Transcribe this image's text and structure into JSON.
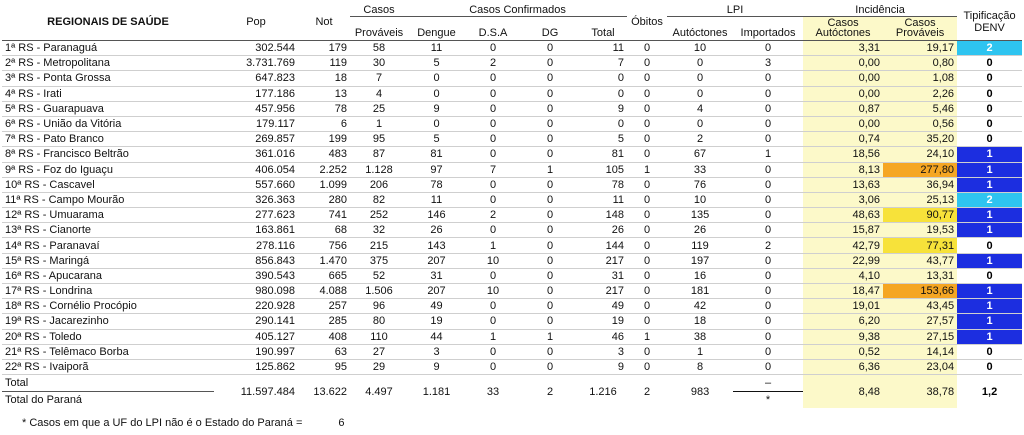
{
  "headers": {
    "regional": "REGIONAIS DE SAÚDE",
    "pop": "Pop",
    "not": "Not",
    "casos_group": "Casos",
    "confirmados_group": "Casos Confirmados",
    "lpi_group": "LPI",
    "incidencia_group": "Incidência",
    "tipificacao": "Tipificação DENV",
    "provaveis": "Prováveis",
    "dengue": "Dengue",
    "dsa": "D.S.A",
    "dg": "DG",
    "total": "Total",
    "obitos": "Óbitos",
    "autoctones": "Autóctones",
    "importados": "Importados",
    "inc_autoctones": "Casos Autóctones",
    "inc_provaveis": "Casos Prováveis"
  },
  "rows": [
    {
      "name": "1ª RS - Paranaguá",
      "pop": "302.544",
      "not": "179",
      "prov": "58",
      "dengue": "11",
      "dsa": "0",
      "dg": "0",
      "total": "11",
      "obitos": "0",
      "aut": "10",
      "imp": "0",
      "inc_aut": "3,31",
      "inc_prov": "19,17",
      "tip": "2",
      "inc_prov_color": "#fcf9c9",
      "tip_color": "#2ec4f0"
    },
    {
      "name": "2ª RS - Metropolitana",
      "pop": "3.731.769",
      "not": "119",
      "prov": "30",
      "dengue": "5",
      "dsa": "2",
      "dg": "0",
      "total": "7",
      "obitos": "0",
      "aut": "0",
      "imp": "3",
      "inc_aut": "0,00",
      "inc_prov": "0,80",
      "tip": "0",
      "inc_prov_color": "#fcf9c9",
      "tip_color": "#ffffff"
    },
    {
      "name": "3ª RS - Ponta Grossa",
      "pop": "647.823",
      "not": "18",
      "prov": "7",
      "dengue": "0",
      "dsa": "0",
      "dg": "0",
      "total": "0",
      "obitos": "0",
      "aut": "0",
      "imp": "0",
      "inc_aut": "0,00",
      "inc_prov": "1,08",
      "tip": "0",
      "inc_prov_color": "#fcf9c9",
      "tip_color": "#ffffff"
    },
    {
      "name": "4ª RS - Irati",
      "pop": "177.186",
      "not": "13",
      "prov": "4",
      "dengue": "0",
      "dsa": "0",
      "dg": "0",
      "total": "0",
      "obitos": "0",
      "aut": "0",
      "imp": "0",
      "inc_aut": "0,00",
      "inc_prov": "2,26",
      "tip": "0",
      "inc_prov_color": "#fcf9c9",
      "tip_color": "#ffffff"
    },
    {
      "name": "5ª RS - Guarapuava",
      "pop": "457.956",
      "not": "78",
      "prov": "25",
      "dengue": "9",
      "dsa": "0",
      "dg": "0",
      "total": "9",
      "obitos": "0",
      "aut": "4",
      "imp": "0",
      "inc_aut": "0,87",
      "inc_prov": "5,46",
      "tip": "0",
      "inc_prov_color": "#fcf9c9",
      "tip_color": "#ffffff"
    },
    {
      "name": "6ª RS - União da Vitória",
      "pop": "179.117",
      "not": "6",
      "prov": "1",
      "dengue": "0",
      "dsa": "0",
      "dg": "0",
      "total": "0",
      "obitos": "0",
      "aut": "0",
      "imp": "0",
      "inc_aut": "0,00",
      "inc_prov": "0,56",
      "tip": "0",
      "inc_prov_color": "#fcf9c9",
      "tip_color": "#ffffff"
    },
    {
      "name": "7ª RS - Pato Branco",
      "pop": "269.857",
      "not": "199",
      "prov": "95",
      "dengue": "5",
      "dsa": "0",
      "dg": "0",
      "total": "5",
      "obitos": "0",
      "aut": "2",
      "imp": "0",
      "inc_aut": "0,74",
      "inc_prov": "35,20",
      "tip": "0",
      "inc_prov_color": "#fcf9c9",
      "tip_color": "#ffffff"
    },
    {
      "name": "8ª RS - Francisco Beltrão",
      "pop": "361.016",
      "not": "483",
      "prov": "87",
      "dengue": "81",
      "dsa": "0",
      "dg": "0",
      "total": "81",
      "obitos": "0",
      "aut": "67",
      "imp": "1",
      "inc_aut": "18,56",
      "inc_prov": "24,10",
      "tip": "1",
      "inc_prov_color": "#fcf9c9",
      "tip_color": "#1c2ee0"
    },
    {
      "name": "9ª RS - Foz do Iguaçu",
      "pop": "406.054",
      "not": "2.252",
      "prov": "1.128",
      "dengue": "97",
      "dsa": "7",
      "dg": "1",
      "total": "105",
      "obitos": "1",
      "aut": "33",
      "imp": "0",
      "inc_aut": "8,13",
      "inc_prov": "277,80",
      "tip": "1",
      "inc_prov_color": "#f5a623",
      "tip_color": "#1c2ee0"
    },
    {
      "name": "10ª RS - Cascavel",
      "pop": "557.660",
      "not": "1.099",
      "prov": "206",
      "dengue": "78",
      "dsa": "0",
      "dg": "0",
      "total": "78",
      "obitos": "0",
      "aut": "76",
      "imp": "0",
      "inc_aut": "13,63",
      "inc_prov": "36,94",
      "tip": "1",
      "inc_prov_color": "#fcf9c9",
      "tip_color": "#1c2ee0"
    },
    {
      "name": "11ª RS - Campo Mourão",
      "pop": "326.363",
      "not": "280",
      "prov": "82",
      "dengue": "11",
      "dsa": "0",
      "dg": "0",
      "total": "11",
      "obitos": "0",
      "aut": "10",
      "imp": "0",
      "inc_aut": "3,06",
      "inc_prov": "25,13",
      "tip": "2",
      "inc_prov_color": "#fcf9c9",
      "tip_color": "#2ec4f0"
    },
    {
      "name": "12ª RS - Umuarama",
      "pop": "277.623",
      "not": "741",
      "prov": "252",
      "dengue": "146",
      "dsa": "2",
      "dg": "0",
      "total": "148",
      "obitos": "0",
      "aut": "135",
      "imp": "0",
      "inc_aut": "48,63",
      "inc_prov": "90,77",
      "tip": "1",
      "inc_prov_color": "#f7e23a",
      "tip_color": "#1c2ee0"
    },
    {
      "name": "13ª RS - Cianorte",
      "pop": "163.861",
      "not": "68",
      "prov": "32",
      "dengue": "26",
      "dsa": "0",
      "dg": "0",
      "total": "26",
      "obitos": "0",
      "aut": "26",
      "imp": "0",
      "inc_aut": "15,87",
      "inc_prov": "19,53",
      "tip": "1",
      "inc_prov_color": "#fcf9c9",
      "tip_color": "#1c2ee0"
    },
    {
      "name": "14ª RS - Paranavaí",
      "pop": "278.116",
      "not": "756",
      "prov": "215",
      "dengue": "143",
      "dsa": "1",
      "dg": "0",
      "total": "144",
      "obitos": "0",
      "aut": "119",
      "imp": "2",
      "inc_aut": "42,79",
      "inc_prov": "77,31",
      "tip": "0",
      "inc_prov_color": "#f7e23a",
      "tip_color": "#ffffff"
    },
    {
      "name": "15ª RS - Maringá",
      "pop": "856.843",
      "not": "1.470",
      "prov": "375",
      "dengue": "207",
      "dsa": "10",
      "dg": "0",
      "total": "217",
      "obitos": "0",
      "aut": "197",
      "imp": "0",
      "inc_aut": "22,99",
      "inc_prov": "43,77",
      "tip": "1",
      "inc_prov_color": "#fcf9c9",
      "tip_color": "#1c2ee0"
    },
    {
      "name": "16ª RS - Apucarana",
      "pop": "390.543",
      "not": "665",
      "prov": "52",
      "dengue": "31",
      "dsa": "0",
      "dg": "0",
      "total": "31",
      "obitos": "0",
      "aut": "16",
      "imp": "0",
      "inc_aut": "4,10",
      "inc_prov": "13,31",
      "tip": "0",
      "inc_prov_color": "#fcf9c9",
      "tip_color": "#ffffff"
    },
    {
      "name": "17ª RS - Londrina",
      "pop": "980.098",
      "not": "4.088",
      "prov": "1.506",
      "dengue": "207",
      "dsa": "10",
      "dg": "0",
      "total": "217",
      "obitos": "0",
      "aut": "181",
      "imp": "0",
      "inc_aut": "18,47",
      "inc_prov": "153,66",
      "tip": "1",
      "inc_prov_color": "#f5a623",
      "tip_color": "#1c2ee0"
    },
    {
      "name": "18ª RS - Cornélio Procópio",
      "pop": "220.928",
      "not": "257",
      "prov": "96",
      "dengue": "49",
      "dsa": "0",
      "dg": "0",
      "total": "49",
      "obitos": "0",
      "aut": "42",
      "imp": "0",
      "inc_aut": "19,01",
      "inc_prov": "43,45",
      "tip": "1",
      "inc_prov_color": "#fcf9c9",
      "tip_color": "#1c2ee0"
    },
    {
      "name": "19ª RS - Jacarezinho",
      "pop": "290.141",
      "not": "285",
      "prov": "80",
      "dengue": "19",
      "dsa": "0",
      "dg": "0",
      "total": "19",
      "obitos": "0",
      "aut": "18",
      "imp": "0",
      "inc_aut": "6,20",
      "inc_prov": "27,57",
      "tip": "1",
      "inc_prov_color": "#fcf9c9",
      "tip_color": "#1c2ee0"
    },
    {
      "name": "20ª RS - Toledo",
      "pop": "405.127",
      "not": "408",
      "prov": "110",
      "dengue": "44",
      "dsa": "1",
      "dg": "1",
      "total": "46",
      "obitos": "1",
      "aut": "38",
      "imp": "0",
      "inc_aut": "9,38",
      "inc_prov": "27,15",
      "tip": "1",
      "inc_prov_color": "#fcf9c9",
      "tip_color": "#1c2ee0"
    },
    {
      "name": "21ª RS - Telêmaco Borba",
      "pop": "190.997",
      "not": "63",
      "prov": "27",
      "dengue": "3",
      "dsa": "0",
      "dg": "0",
      "total": "3",
      "obitos": "0",
      "aut": "1",
      "imp": "0",
      "inc_aut": "0,52",
      "inc_prov": "14,14",
      "tip": "0",
      "inc_prov_color": "#fcf9c9",
      "tip_color": "#ffffff"
    },
    {
      "name": "22ª RS - Ivaiporã",
      "pop": "125.862",
      "not": "95",
      "prov": "29",
      "dengue": "9",
      "dsa": "0",
      "dg": "0",
      "total": "9",
      "obitos": "0",
      "aut": "8",
      "imp": "0",
      "inc_aut": "6,36",
      "inc_prov": "23,04",
      "tip": "0",
      "inc_prov_color": "#fcf9c9",
      "tip_color": "#ffffff"
    }
  ],
  "totals": {
    "label1": "Total",
    "label2": "Total do Paraná",
    "pop": "11.597.484",
    "not": "13.622",
    "prov": "4.497",
    "dengue": "1.181",
    "dsa": "33",
    "dg": "2",
    "total": "1.216",
    "obitos": "2",
    "aut": "983",
    "imp_top": "–",
    "imp_bottom": "*",
    "inc_aut": "8,48",
    "inc_prov": "38,78",
    "tip": "1,2"
  },
  "footnote": {
    "text": "* Casos em que a UF do LPI não é o Estado do Paraná  =",
    "value": "6"
  }
}
